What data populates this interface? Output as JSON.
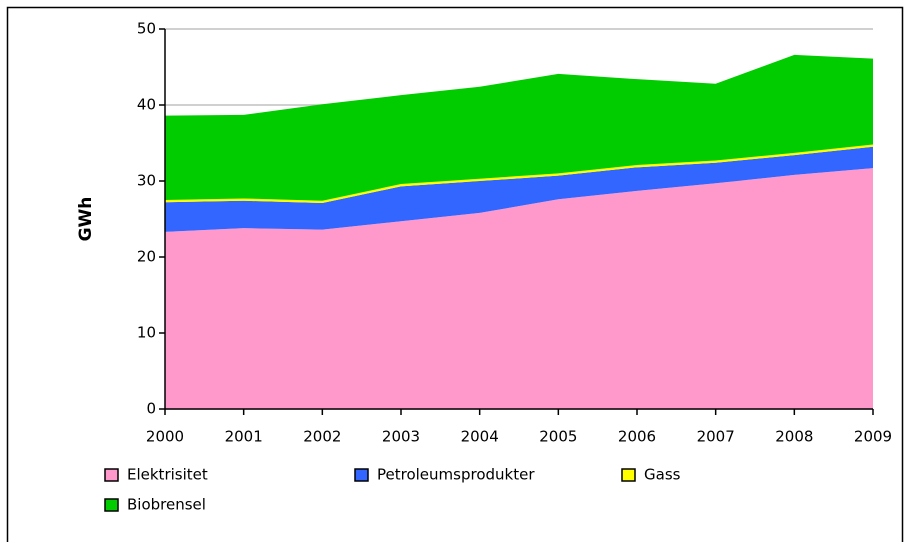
{
  "chart_data": {
    "type": "stacked_area",
    "y_label": "GWh",
    "x": [
      2000,
      2001,
      2002,
      2003,
      2004,
      2005,
      2006,
      2007,
      2008,
      2009
    ],
    "xlim": [
      2000,
      2009
    ],
    "xticks": [
      2000,
      2001,
      2002,
      2003,
      2004,
      2005,
      2006,
      2007,
      2008,
      2009
    ],
    "ylim": [
      0,
      50
    ],
    "yticks": [
      0,
      10,
      20,
      30,
      40,
      50
    ],
    "grid": true,
    "series": [
      {
        "name": "Elektrisitet",
        "color": "#ff99cc",
        "values": [
          23.3,
          23.8,
          23.6,
          24.7,
          25.8,
          27.6,
          28.7,
          29.7,
          30.8,
          31.7
        ]
      },
      {
        "name": "Petroleumsprodukter",
        "color": "#3366ff",
        "values": [
          3.9,
          3.6,
          3.5,
          4.6,
          4.2,
          3.1,
          3.1,
          2.7,
          2.6,
          2.8
        ]
      },
      {
        "name": "Gass",
        "color": "#ffff00",
        "values": [
          0.3,
          0.3,
          0.3,
          0.3,
          0.3,
          0.3,
          0.3,
          0.3,
          0.3,
          0.3
        ]
      },
      {
        "name": "Biobrensel",
        "color": "#00cc00",
        "values": [
          11.1,
          11.0,
          12.7,
          11.7,
          12.1,
          13.1,
          11.3,
          10.1,
          12.9,
          11.3
        ]
      }
    ]
  }
}
